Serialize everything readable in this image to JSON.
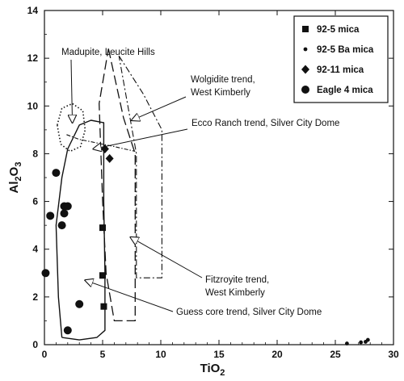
{
  "chart_data": {
    "type": "scatter",
    "xlabel": "TiO",
    "xlabel_sub": "2",
    "ylabel_parts": [
      "Al",
      "2",
      "O",
      "3"
    ],
    "xlim": [
      0,
      30
    ],
    "ylim": [
      0,
      14
    ],
    "x_ticks": [
      0,
      5,
      10,
      15,
      20,
      25,
      30
    ],
    "y_ticks": [
      0,
      2,
      4,
      6,
      8,
      10,
      12,
      14
    ],
    "legend_position": "top-right",
    "series": [
      {
        "name": "92-5 mica",
        "marker": "square",
        "points": [
          [
            5.0,
            4.9
          ],
          [
            5.0,
            2.9
          ],
          [
            5.1,
            1.6
          ]
        ]
      },
      {
        "name": "92-5 Ba mica",
        "marker": "small-dot",
        "points": [
          [
            26.0,
            0.05
          ],
          [
            27.2,
            0.1
          ],
          [
            27.6,
            0.12
          ],
          [
            27.8,
            0.2
          ]
        ]
      },
      {
        "name": "92-11 mica",
        "marker": "diamond",
        "points": [
          [
            5.2,
            8.2
          ],
          [
            5.6,
            7.8
          ]
        ]
      },
      {
        "name": "Eagle 4 mica",
        "marker": "circle",
        "points": [
          [
            0.1,
            3.0
          ],
          [
            0.5,
            5.4
          ],
          [
            1.0,
            7.2
          ],
          [
            1.5,
            5.0
          ],
          [
            1.7,
            5.5
          ],
          [
            1.7,
            5.8
          ],
          [
            2.0,
            5.8
          ],
          [
            2.0,
            0.6
          ],
          [
            3.0,
            1.7
          ]
        ]
      }
    ],
    "fields": [
      {
        "name": "Eagle 4 mica field",
        "style": "solid",
        "path": [
          [
            1.5,
            0.3
          ],
          [
            3.0,
            0.2
          ],
          [
            4.5,
            0.3
          ],
          [
            5.2,
            0.6
          ],
          [
            5.2,
            3.0
          ],
          [
            5.1,
            6.0
          ],
          [
            5.1,
            9.3
          ],
          [
            4.0,
            9.4
          ],
          [
            3.0,
            9.2
          ],
          [
            2.0,
            8.2
          ],
          [
            1.5,
            7.0
          ],
          [
            1.0,
            5.0
          ],
          [
            1.2,
            2.0
          ],
          [
            1.5,
            0.3
          ]
        ]
      },
      {
        "name": "Madupite, Leucite Hills",
        "style": "dotted",
        "path": [
          [
            1.1,
            9.2
          ],
          [
            1.5,
            9.9
          ],
          [
            2.4,
            10.1
          ],
          [
            3.3,
            9.8
          ],
          [
            3.5,
            9.0
          ],
          [
            3.1,
            8.3
          ],
          [
            2.2,
            8.1
          ],
          [
            1.4,
            8.4
          ],
          [
            1.1,
            9.2
          ]
        ]
      },
      {
        "name": "Wolgidite trend, West Kimberly",
        "style": "dash-dot",
        "path": [
          [
            6.4,
            12.1
          ],
          [
            8.5,
            10.5
          ],
          [
            10.1,
            9.0
          ],
          [
            10.1,
            2.8
          ],
          [
            7.9,
            2.8
          ],
          [
            7.9,
            8.0
          ],
          [
            6.4,
            12.1
          ]
        ]
      },
      {
        "name": "Fitzroyite trend, West Kimberly",
        "style": "long-dash",
        "path": [
          [
            5.5,
            12.4
          ],
          [
            6.8,
            9.5
          ],
          [
            7.8,
            8.0
          ],
          [
            7.8,
            1.0
          ],
          [
            6.0,
            1.0
          ],
          [
            5.3,
            3.0
          ],
          [
            5.0,
            6.0
          ],
          [
            4.7,
            10.1
          ],
          [
            5.5,
            12.4
          ]
        ]
      },
      {
        "name": "Ecco Ranch trend, Silver City Dome",
        "style": "dash-dot-small",
        "path": [
          [
            1.9,
            8.8
          ],
          [
            3.0,
            8.6
          ],
          [
            4.0,
            8.5
          ],
          [
            6.0,
            8.3
          ],
          [
            7.8,
            8.1
          ]
        ]
      }
    ],
    "annotations": [
      {
        "text": "Madupite, Leucite Hills",
        "point": [
          2.4,
          9.3
        ]
      },
      {
        "text": "Wolgidite trend,",
        "text2": "West Kimberly",
        "point": [
          7.5,
          9.4
        ]
      },
      {
        "text": "Ecco Ranch trend, Silver City Dome",
        "point": [
          4.2,
          8.2
        ]
      },
      {
        "text": "Fitzroyite trend,",
        "text2": "West Kimberly",
        "point": [
          7.4,
          4.5
        ]
      },
      {
        "text": "Guess core trend, Silver City Dome",
        "point": [
          3.5,
          2.7
        ]
      }
    ]
  }
}
